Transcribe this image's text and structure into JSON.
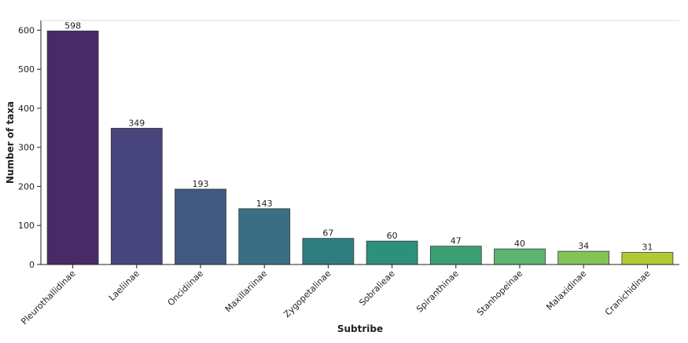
{
  "chart_data": {
    "type": "bar",
    "title": "",
    "xlabel": "Subtribe",
    "ylabel": "Number of taxa",
    "categories": [
      "Pleurothallidinae",
      "Laeliinae",
      "Oncidiinae",
      "Maxillariinae",
      "Zygopetalinae",
      "Sobralieae",
      "Spiranthinae",
      "Stanhopeinae",
      "Malaxidinae",
      "Cranichidinae"
    ],
    "values": [
      598,
      349,
      193,
      143,
      67,
      60,
      47,
      40,
      34,
      31
    ],
    "value_labels": [
      "598",
      "349",
      "193",
      "143",
      "67",
      "60",
      "47",
      "40",
      "34",
      "31"
    ],
    "ylim": [
      0,
      625
    ],
    "yticks": [
      0,
      100,
      200,
      300,
      400,
      500,
      600
    ],
    "ytick_labels": [
      "0",
      "100",
      "200",
      "300",
      "400",
      "500",
      "600"
    ],
    "colors": [
      "#482a67",
      "#48457c",
      "#425a80",
      "#3a6f83",
      "#2f7d7f",
      "#2d907c",
      "#3aa074",
      "#5bb56d",
      "#85c354",
      "#b0ca36"
    ],
    "bar_edge_color": "#3a3a3a",
    "grid": false,
    "legend": "none"
  }
}
